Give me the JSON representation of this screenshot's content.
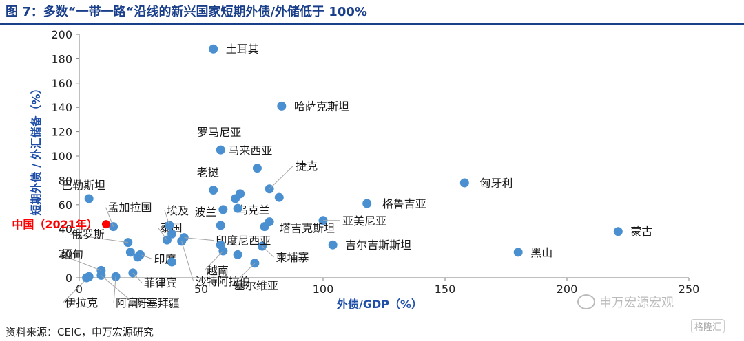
{
  "header": {
    "title": "图 7：多数“一带一路“沿线的新兴国家短期外债/外储低于 100%"
  },
  "footer": {
    "source": "资料来源：CEIC，申万宏源研究"
  },
  "watermark": {
    "text": "申万宏源宏观",
    "badge": "格隆汇"
  },
  "colors": {
    "point": "#4a90d0",
    "highlight": "#ff0000",
    "title": "#1a3f8a",
    "axis_label": "#1f4fa8",
    "leader": "#a6a6a6"
  },
  "chart_data": {
    "type": "scatter",
    "xlabel": "外债/GDP（%）",
    "ylabel": "短期外债 / 外汇储备（%）",
    "xlim": [
      0,
      250
    ],
    "ylim": [
      0,
      200
    ],
    "xticks": [
      0,
      50,
      100,
      150,
      200,
      250
    ],
    "yticks": [
      0,
      20,
      40,
      60,
      80,
      100,
      120,
      140,
      160,
      180,
      200
    ],
    "grid": false,
    "points": [
      {
        "x": 55,
        "y": 188,
        "label": "土耳其"
      },
      {
        "x": 83,
        "y": 141,
        "label": "哈萨克斯坦"
      },
      {
        "x": 58,
        "y": 105,
        "label": "罗马尼亚"
      },
      {
        "x": 73,
        "y": 90,
        "label": "马来西亚"
      },
      {
        "x": 78,
        "y": 73,
        "label": "捷克"
      },
      {
        "x": 158,
        "y": 78,
        "label": "匈牙利"
      },
      {
        "x": 55,
        "y": 72,
        "label": "老挝"
      },
      {
        "x": 4,
        "y": 65,
        "label": "巴勒斯坦"
      },
      {
        "x": 118,
        "y": 61,
        "label": "格鲁吉亚"
      },
      {
        "x": 100,
        "y": 47,
        "label": "亚美尼亚"
      },
      {
        "x": 221,
        "y": 38,
        "label": "蒙古"
      },
      {
        "x": 104,
        "y": 27,
        "label": "吉尔吉斯斯坦"
      },
      {
        "x": 180,
        "y": 21,
        "label": "黑山"
      },
      {
        "x": 58,
        "y": 43,
        "label": "波兰"
      },
      {
        "x": 59,
        "y": 56,
        "label": "乌克兰"
      },
      {
        "x": 76,
        "y": 42,
        "label": "塔吉克斯坦"
      },
      {
        "x": 75,
        "y": 26,
        "label": "柬埔寨"
      },
      {
        "x": 72,
        "y": 12,
        "label": "塞尔维亚"
      },
      {
        "x": 59,
        "y": 22,
        "label": "越南"
      },
      {
        "x": 43,
        "y": 33,
        "label": "印度尼西亚"
      },
      {
        "x": 36,
        "y": 31,
        "label": "泰国"
      },
      {
        "x": 37,
        "y": 43,
        "label": "埃及"
      },
      {
        "x": 42,
        "y": 30,
        "label": "沙特阿拉伯"
      },
      {
        "x": 25,
        "y": 19,
        "label": "印度"
      },
      {
        "x": 20,
        "y": 29,
        "label": "俄罗斯"
      },
      {
        "x": 14,
        "y": 42,
        "label": "孟加拉国"
      },
      {
        "x": 9,
        "y": 6,
        "label": "缅甸"
      },
      {
        "x": 22,
        "y": 4,
        "label": "菲律宾"
      },
      {
        "x": 4,
        "y": 1,
        "label": "伊拉克"
      },
      {
        "x": 15,
        "y": 1,
        "label": "阿富汗"
      },
      {
        "x": 9,
        "y": 2,
        "label": "阿塞拜疆"
      },
      {
        "x": 11,
        "y": 44,
        "label": "中国（2021年）",
        "highlight": true
      },
      {
        "x": 64,
        "y": 65,
        "label": ""
      },
      {
        "x": 66,
        "y": 69,
        "label": ""
      },
      {
        "x": 82,
        "y": 66,
        "label": ""
      },
      {
        "x": 65,
        "y": 57,
        "label": ""
      },
      {
        "x": 78,
        "y": 46,
        "label": ""
      },
      {
        "x": 38,
        "y": 36,
        "label": ""
      },
      {
        "x": 58,
        "y": 27,
        "label": ""
      },
      {
        "x": 65,
        "y": 19,
        "label": ""
      },
      {
        "x": 38,
        "y": 13,
        "label": ""
      },
      {
        "x": 21,
        "y": 21,
        "label": ""
      },
      {
        "x": 24,
        "y": 17,
        "label": ""
      },
      {
        "x": 3,
        "y": 0,
        "label": ""
      }
    ]
  }
}
